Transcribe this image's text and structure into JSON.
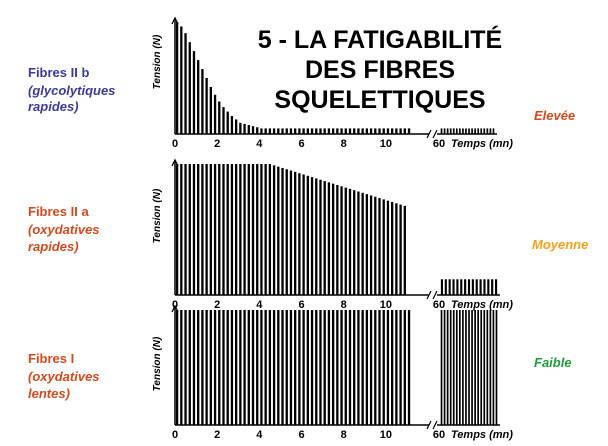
{
  "title_lines": [
    "5 - LA FATIGABILITÉ",
    "DES FIBRES",
    "SQUELETTIQUES"
  ],
  "colors": {
    "blue": "#3a3a9a",
    "red": "#d04a1e",
    "orange": "#f0a020",
    "green": "#1f9a3a",
    "bars": "#000000"
  },
  "chart_data": [
    {
      "type": "bar",
      "id": "fibres-2b",
      "fibre_name": "Fibres II b",
      "fibre_desc": [
        "(glycolytiques",
        "rapides)"
      ],
      "fatigability": "Elevée",
      "ylabel": "Tension (N)",
      "xlabel": "Temps (mn)",
      "xticks": [
        "0",
        "2",
        "4",
        "6",
        "8",
        "10",
        "60"
      ],
      "xlim": [
        0,
        12
      ],
      "ylim": [
        0,
        1
      ],
      "axis_break": "between 11 and 60",
      "bar_interval_mn": 0.2,
      "main_values": [
        1.0,
        0.96,
        0.9,
        0.82,
        0.74,
        0.66,
        0.58,
        0.5,
        0.42,
        0.35,
        0.29,
        0.24,
        0.2,
        0.16,
        0.13,
        0.1,
        0.09,
        0.08,
        0.07,
        0.06,
        0.05,
        0.05,
        0.05,
        0.05,
        0.05,
        0.05,
        0.05,
        0.05,
        0.05,
        0.05,
        0.05,
        0.05,
        0.05,
        0.05,
        0.05,
        0.05,
        0.05,
        0.05,
        0.05,
        0.05,
        0.05,
        0.05,
        0.05,
        0.05,
        0.05,
        0.05,
        0.05,
        0.05,
        0.05,
        0.05,
        0.05,
        0.05,
        0.05,
        0.05,
        0.05,
        0.05
      ],
      "after_break_values": [
        0.05,
        0.05,
        0.05,
        0.05,
        0.05,
        0.05,
        0.05,
        0.05,
        0.05,
        0.05,
        0.05,
        0.05,
        0.05,
        0.05,
        0.05,
        0.05,
        0.05,
        0.05
      ]
    },
    {
      "type": "bar",
      "id": "fibres-2a",
      "fibre_name": "Fibres II a",
      "fibre_desc": [
        "(oxydatives",
        "rapides)"
      ],
      "fatigability": "Moyenne",
      "ylabel": "Tension (N)",
      "xlabel": "Temps (mn)",
      "xticks": [
        "0",
        "2",
        "4",
        "6",
        "8",
        "10",
        "60"
      ],
      "xlim": [
        0,
        12
      ],
      "ylim": [
        0,
        1
      ],
      "axis_break": "between 11 and 60",
      "bar_interval_mn": 0.2,
      "main_values": [
        1.0,
        1.0,
        1.0,
        1.0,
        1.0,
        1.0,
        1.0,
        1.0,
        1.0,
        1.0,
        1.0,
        1.0,
        1.0,
        1.0,
        1.0,
        1.0,
        1.0,
        1.0,
        1.0,
        1.0,
        1.0,
        1.0,
        1.0,
        0.99,
        0.98,
        0.97,
        0.96,
        0.95,
        0.94,
        0.93,
        0.92,
        0.91,
        0.9,
        0.89,
        0.88,
        0.87,
        0.86,
        0.85,
        0.84,
        0.83,
        0.82,
        0.81,
        0.8,
        0.79,
        0.78,
        0.77,
        0.76,
        0.75,
        0.74,
        0.73,
        0.72,
        0.71,
        0.7,
        0.69,
        0.68
      ],
      "after_break_values": [
        0.12,
        0.12,
        0.12,
        0.12,
        0.12,
        0.12,
        0.12,
        0.12,
        0.12,
        0.12,
        0.12,
        0.12,
        0.12,
        0.12,
        0.12
      ]
    },
    {
      "type": "bar",
      "id": "fibres-1",
      "fibre_name": "Fibres I",
      "fibre_desc": [
        "(oxydatives",
        "lentes)"
      ],
      "fatigability": "Faible",
      "ylabel": "Tension (N)",
      "xlabel": "Temps (mn)",
      "xticks": [
        "0",
        "2",
        "4",
        "6",
        "8",
        "10",
        "60"
      ],
      "xlim": [
        0,
        12
      ],
      "ylim": [
        0,
        1
      ],
      "axis_break": "between 11 and 60",
      "bar_interval_mn": 0.2,
      "main_values": [
        1.0,
        1.0,
        1.0,
        1.0,
        1.0,
        1.0,
        1.0,
        1.0,
        1.0,
        1.0,
        1.0,
        1.0,
        1.0,
        1.0,
        1.0,
        1.0,
        1.0,
        1.0,
        1.0,
        1.0,
        1.0,
        1.0,
        1.0,
        1.0,
        1.0,
        1.0,
        1.0,
        1.0,
        1.0,
        1.0,
        1.0,
        1.0,
        1.0,
        1.0,
        1.0,
        1.0,
        1.0,
        1.0,
        1.0,
        1.0,
        1.0,
        1.0,
        1.0,
        1.0,
        1.0,
        1.0,
        1.0,
        1.0,
        1.0,
        1.0,
        1.0,
        1.0,
        1.0,
        1.0,
        1.0,
        1.0
      ],
      "after_break_values": [
        1.0,
        1.0,
        1.0,
        1.0,
        1.0,
        1.0,
        1.0,
        1.0,
        1.0,
        1.0,
        1.0,
        1.0,
        1.0,
        1.0,
        1.0,
        1.0,
        1.0,
        1.0,
        1.0
      ]
    }
  ]
}
